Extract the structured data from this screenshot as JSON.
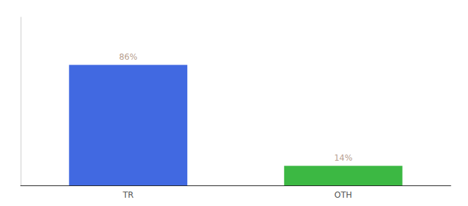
{
  "chart_data": {
    "type": "bar",
    "categories": [
      "TR",
      "OTH"
    ],
    "values": [
      86,
      14
    ],
    "value_labels": [
      "86%",
      "14%"
    ],
    "colors": [
      "#4169E1",
      "#3CB843"
    ],
    "data_labels": true,
    "ylim": [
      0,
      120
    ],
    "tick_labels": "x",
    "grid": false
  }
}
